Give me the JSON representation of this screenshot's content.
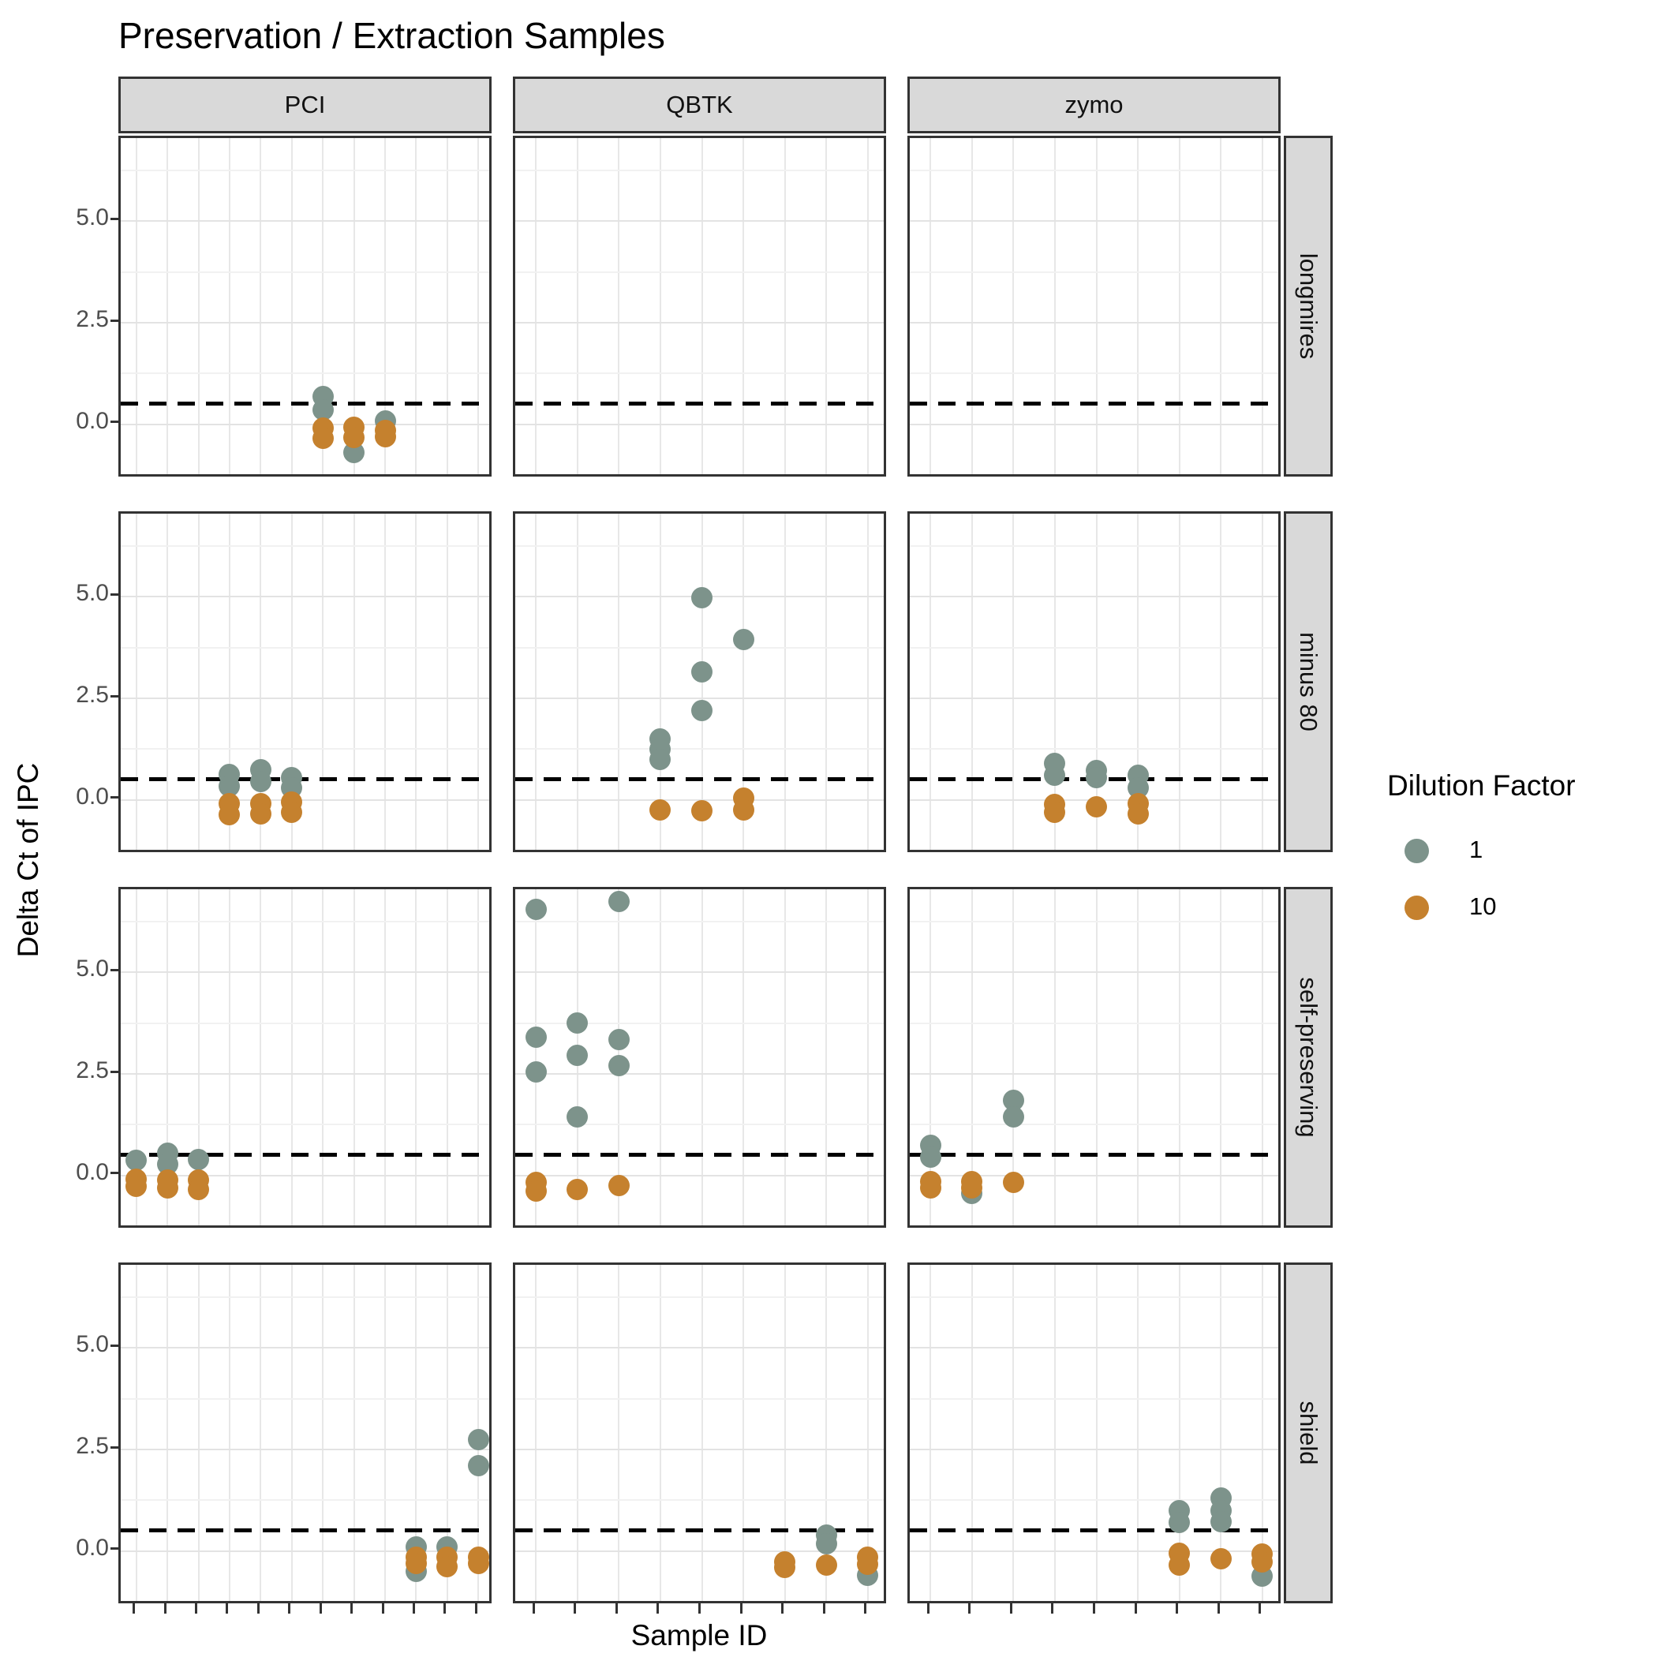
{
  "chart_data": {
    "type": "scatter",
    "title": "Preservation / Extraction Samples",
    "xlabel": "Sample ID",
    "ylabel": "Delta Ct of IPC",
    "facet_columns": [
      "PCI",
      "QBTK",
      "zymo"
    ],
    "facet_rows": [
      "longmires",
      "minus 80",
      "self-preserving",
      "shield"
    ],
    "samples_per_column": {
      "PCI": 12,
      "QBTK": 9,
      "zymo": 9
    },
    "y_axis": {
      "tick_values": [
        0.0,
        2.5,
        5.0
      ],
      "tick_labels": [
        "0.0",
        "2.5",
        "5.0"
      ],
      "range": [
        -1.35,
        7.05
      ],
      "minor_gridlines": [
        -1.25,
        1.25,
        3.75,
        6.25
      ]
    },
    "grid": true,
    "reference_line": {
      "y": 0.5,
      "style": "dashed",
      "color": "#000000"
    },
    "legend": {
      "title": "Dilution Factor",
      "position": "right",
      "entries": [
        {
          "label": "1",
          "color": "#7d938b"
        },
        {
          "label": "10",
          "color": "#c5812e"
        }
      ]
    },
    "dilution_colors": {
      "1": "#7d938b",
      "10": "#c5812e"
    },
    "points": [
      {
        "row": "longmires",
        "col": "PCI",
        "sample": 7,
        "dilution": "1",
        "delta_ct": 0.68
      },
      {
        "row": "longmires",
        "col": "PCI",
        "sample": 7,
        "dilution": "1",
        "delta_ct": 0.35
      },
      {
        "row": "longmires",
        "col": "PCI",
        "sample": 7,
        "dilution": "10",
        "delta_ct": -0.1
      },
      {
        "row": "longmires",
        "col": "PCI",
        "sample": 7,
        "dilution": "10",
        "delta_ct": -0.35
      },
      {
        "row": "longmires",
        "col": "PCI",
        "sample": 8,
        "dilution": "1",
        "delta_ct": -0.7
      },
      {
        "row": "longmires",
        "col": "PCI",
        "sample": 8,
        "dilution": "10",
        "delta_ct": -0.08
      },
      {
        "row": "longmires",
        "col": "PCI",
        "sample": 8,
        "dilution": "10",
        "delta_ct": -0.33
      },
      {
        "row": "longmires",
        "col": "PCI",
        "sample": 9,
        "dilution": "1",
        "delta_ct": 0.07
      },
      {
        "row": "longmires",
        "col": "PCI",
        "sample": 9,
        "dilution": "10",
        "delta_ct": -0.15
      },
      {
        "row": "longmires",
        "col": "PCI",
        "sample": 9,
        "dilution": "10",
        "delta_ct": -0.3
      },
      {
        "row": "minus 80",
        "col": "PCI",
        "sample": 4,
        "dilution": "1",
        "delta_ct": 0.62
      },
      {
        "row": "minus 80",
        "col": "PCI",
        "sample": 4,
        "dilution": "1",
        "delta_ct": 0.33
      },
      {
        "row": "minus 80",
        "col": "PCI",
        "sample": 4,
        "dilution": "10",
        "delta_ct": -0.1
      },
      {
        "row": "minus 80",
        "col": "PCI",
        "sample": 4,
        "dilution": "10",
        "delta_ct": -0.36
      },
      {
        "row": "minus 80",
        "col": "PCI",
        "sample": 5,
        "dilution": "1",
        "delta_ct": 0.75
      },
      {
        "row": "minus 80",
        "col": "PCI",
        "sample": 5,
        "dilution": "1",
        "delta_ct": 0.45
      },
      {
        "row": "minus 80",
        "col": "PCI",
        "sample": 5,
        "dilution": "10",
        "delta_ct": -0.1
      },
      {
        "row": "minus 80",
        "col": "PCI",
        "sample": 5,
        "dilution": "10",
        "delta_ct": -0.35
      },
      {
        "row": "minus 80",
        "col": "PCI",
        "sample": 6,
        "dilution": "1",
        "delta_ct": 0.55
      },
      {
        "row": "minus 80",
        "col": "PCI",
        "sample": 6,
        "dilution": "1",
        "delta_ct": 0.3
      },
      {
        "row": "minus 80",
        "col": "PCI",
        "sample": 6,
        "dilution": "10",
        "delta_ct": -0.05
      },
      {
        "row": "minus 80",
        "col": "PCI",
        "sample": 6,
        "dilution": "10",
        "delta_ct": -0.3
      },
      {
        "row": "minus 80",
        "col": "QBTK",
        "sample": 4,
        "dilution": "1",
        "delta_ct": 1.5
      },
      {
        "row": "minus 80",
        "col": "QBTK",
        "sample": 4,
        "dilution": "1",
        "delta_ct": 1.25
      },
      {
        "row": "minus 80",
        "col": "QBTK",
        "sample": 4,
        "dilution": "1",
        "delta_ct": 1.0
      },
      {
        "row": "minus 80",
        "col": "QBTK",
        "sample": 4,
        "dilution": "10",
        "delta_ct": -0.25
      },
      {
        "row": "minus 80",
        "col": "QBTK",
        "sample": 5,
        "dilution": "1",
        "delta_ct": 4.97
      },
      {
        "row": "minus 80",
        "col": "QBTK",
        "sample": 5,
        "dilution": "1",
        "delta_ct": 3.15
      },
      {
        "row": "minus 80",
        "col": "QBTK",
        "sample": 5,
        "dilution": "1",
        "delta_ct": 2.2
      },
      {
        "row": "minus 80",
        "col": "QBTK",
        "sample": 5,
        "dilution": "10",
        "delta_ct": -0.28
      },
      {
        "row": "minus 80",
        "col": "QBTK",
        "sample": 6,
        "dilution": "1",
        "delta_ct": 3.95
      },
      {
        "row": "minus 80",
        "col": "QBTK",
        "sample": 6,
        "dilution": "10",
        "delta_ct": 0.05
      },
      {
        "row": "minus 80",
        "col": "QBTK",
        "sample": 6,
        "dilution": "10",
        "delta_ct": -0.25
      },
      {
        "row": "minus 80",
        "col": "zymo",
        "sample": 4,
        "dilution": "1",
        "delta_ct": 0.9
      },
      {
        "row": "minus 80",
        "col": "zymo",
        "sample": 4,
        "dilution": "1",
        "delta_ct": 0.6
      },
      {
        "row": "minus 80",
        "col": "zymo",
        "sample": 4,
        "dilution": "10",
        "delta_ct": -0.12
      },
      {
        "row": "minus 80",
        "col": "zymo",
        "sample": 4,
        "dilution": "10",
        "delta_ct": -0.3
      },
      {
        "row": "minus 80",
        "col": "zymo",
        "sample": 5,
        "dilution": "1",
        "delta_ct": 0.72
      },
      {
        "row": "minus 80",
        "col": "zymo",
        "sample": 5,
        "dilution": "1",
        "delta_ct": 0.55
      },
      {
        "row": "minus 80",
        "col": "zymo",
        "sample": 5,
        "dilution": "10",
        "delta_ct": -0.18
      },
      {
        "row": "minus 80",
        "col": "zymo",
        "sample": 6,
        "dilution": "1",
        "delta_ct": 0.6
      },
      {
        "row": "minus 80",
        "col": "zymo",
        "sample": 6,
        "dilution": "1",
        "delta_ct": 0.3
      },
      {
        "row": "minus 80",
        "col": "zymo",
        "sample": 6,
        "dilution": "10",
        "delta_ct": -0.1
      },
      {
        "row": "minus 80",
        "col": "zymo",
        "sample": 6,
        "dilution": "10",
        "delta_ct": -0.35
      },
      {
        "row": "self-preserving",
        "col": "PCI",
        "sample": 1,
        "dilution": "1",
        "delta_ct": 0.38
      },
      {
        "row": "self-preserving",
        "col": "PCI",
        "sample": 1,
        "dilution": "10",
        "delta_ct": -0.1
      },
      {
        "row": "self-preserving",
        "col": "PCI",
        "sample": 1,
        "dilution": "10",
        "delta_ct": -0.28
      },
      {
        "row": "self-preserving",
        "col": "PCI",
        "sample": 2,
        "dilution": "1",
        "delta_ct": 0.55
      },
      {
        "row": "self-preserving",
        "col": "PCI",
        "sample": 2,
        "dilution": "1",
        "delta_ct": 0.28
      },
      {
        "row": "self-preserving",
        "col": "PCI",
        "sample": 2,
        "dilution": "10",
        "delta_ct": -0.12
      },
      {
        "row": "self-preserving",
        "col": "PCI",
        "sample": 2,
        "dilution": "10",
        "delta_ct": -0.3
      },
      {
        "row": "self-preserving",
        "col": "PCI",
        "sample": 3,
        "dilution": "1",
        "delta_ct": 0.4
      },
      {
        "row": "self-preserving",
        "col": "PCI",
        "sample": 3,
        "dilution": "10",
        "delta_ct": -0.12
      },
      {
        "row": "self-preserving",
        "col": "PCI",
        "sample": 3,
        "dilution": "10",
        "delta_ct": -0.35
      },
      {
        "row": "self-preserving",
        "col": "QBTK",
        "sample": 1,
        "dilution": "1",
        "delta_ct": 6.55
      },
      {
        "row": "self-preserving",
        "col": "QBTK",
        "sample": 1,
        "dilution": "1",
        "delta_ct": 3.4
      },
      {
        "row": "self-preserving",
        "col": "QBTK",
        "sample": 1,
        "dilution": "1",
        "delta_ct": 2.55
      },
      {
        "row": "self-preserving",
        "col": "QBTK",
        "sample": 1,
        "dilution": "10",
        "delta_ct": -0.18
      },
      {
        "row": "self-preserving",
        "col": "QBTK",
        "sample": 1,
        "dilution": "10",
        "delta_ct": -0.38
      },
      {
        "row": "self-preserving",
        "col": "QBTK",
        "sample": 2,
        "dilution": "1",
        "delta_ct": 3.75
      },
      {
        "row": "self-preserving",
        "col": "QBTK",
        "sample": 2,
        "dilution": "1",
        "delta_ct": 2.95
      },
      {
        "row": "self-preserving",
        "col": "QBTK",
        "sample": 2,
        "dilution": "1",
        "delta_ct": 1.45
      },
      {
        "row": "self-preserving",
        "col": "QBTK",
        "sample": 2,
        "dilution": "10",
        "delta_ct": -0.35
      },
      {
        "row": "self-preserving",
        "col": "QBTK",
        "sample": 3,
        "dilution": "1",
        "delta_ct": 6.75
      },
      {
        "row": "self-preserving",
        "col": "QBTK",
        "sample": 3,
        "dilution": "1",
        "delta_ct": 3.35
      },
      {
        "row": "self-preserving",
        "col": "QBTK",
        "sample": 3,
        "dilution": "1",
        "delta_ct": 2.7
      },
      {
        "row": "self-preserving",
        "col": "QBTK",
        "sample": 3,
        "dilution": "10",
        "delta_ct": -0.25
      },
      {
        "row": "self-preserving",
        "col": "zymo",
        "sample": 1,
        "dilution": "1",
        "delta_ct": 0.75
      },
      {
        "row": "self-preserving",
        "col": "zymo",
        "sample": 1,
        "dilution": "1",
        "delta_ct": 0.45
      },
      {
        "row": "self-preserving",
        "col": "zymo",
        "sample": 1,
        "dilution": "10",
        "delta_ct": -0.15
      },
      {
        "row": "self-preserving",
        "col": "zymo",
        "sample": 1,
        "dilution": "10",
        "delta_ct": -0.3
      },
      {
        "row": "self-preserving",
        "col": "zymo",
        "sample": 2,
        "dilution": "1",
        "delta_ct": -0.45
      },
      {
        "row": "self-preserving",
        "col": "zymo",
        "sample": 2,
        "dilution": "10",
        "delta_ct": -0.15
      },
      {
        "row": "self-preserving",
        "col": "zymo",
        "sample": 2,
        "dilution": "10",
        "delta_ct": -0.3
      },
      {
        "row": "self-preserving",
        "col": "zymo",
        "sample": 3,
        "dilution": "1",
        "delta_ct": 1.85
      },
      {
        "row": "self-preserving",
        "col": "zymo",
        "sample": 3,
        "dilution": "1",
        "delta_ct": 1.45
      },
      {
        "row": "self-preserving",
        "col": "zymo",
        "sample": 3,
        "dilution": "10",
        "delta_ct": -0.18
      },
      {
        "row": "shield",
        "col": "PCI",
        "sample": 10,
        "dilution": "1",
        "delta_ct": 0.1
      },
      {
        "row": "shield",
        "col": "PCI",
        "sample": 10,
        "dilution": "1",
        "delta_ct": -0.5
      },
      {
        "row": "shield",
        "col": "PCI",
        "sample": 10,
        "dilution": "10",
        "delta_ct": -0.15
      },
      {
        "row": "shield",
        "col": "PCI",
        "sample": 10,
        "dilution": "10",
        "delta_ct": -0.3
      },
      {
        "row": "shield",
        "col": "PCI",
        "sample": 11,
        "dilution": "1",
        "delta_ct": 0.1
      },
      {
        "row": "shield",
        "col": "PCI",
        "sample": 11,
        "dilution": "10",
        "delta_ct": -0.15
      },
      {
        "row": "shield",
        "col": "PCI",
        "sample": 11,
        "dilution": "10",
        "delta_ct": -0.38
      },
      {
        "row": "shield",
        "col": "PCI",
        "sample": 12,
        "dilution": "1",
        "delta_ct": 2.75
      },
      {
        "row": "shield",
        "col": "PCI",
        "sample": 12,
        "dilution": "1",
        "delta_ct": 2.1
      },
      {
        "row": "shield",
        "col": "PCI",
        "sample": 12,
        "dilution": "10",
        "delta_ct": -0.15
      },
      {
        "row": "shield",
        "col": "PCI",
        "sample": 12,
        "dilution": "10",
        "delta_ct": -0.3
      },
      {
        "row": "shield",
        "col": "QBTK",
        "sample": 7,
        "dilution": "10",
        "delta_ct": -0.28
      },
      {
        "row": "shield",
        "col": "QBTK",
        "sample": 7,
        "dilution": "10",
        "delta_ct": -0.4
      },
      {
        "row": "shield",
        "col": "QBTK",
        "sample": 8,
        "dilution": "1",
        "delta_ct": 0.4
      },
      {
        "row": "shield",
        "col": "QBTK",
        "sample": 8,
        "dilution": "1",
        "delta_ct": 0.18
      },
      {
        "row": "shield",
        "col": "QBTK",
        "sample": 8,
        "dilution": "10",
        "delta_ct": -0.35
      },
      {
        "row": "shield",
        "col": "QBTK",
        "sample": 9,
        "dilution": "1",
        "delta_ct": -0.6
      },
      {
        "row": "shield",
        "col": "QBTK",
        "sample": 9,
        "dilution": "10",
        "delta_ct": -0.15
      },
      {
        "row": "shield",
        "col": "QBTK",
        "sample": 9,
        "dilution": "10",
        "delta_ct": -0.32
      },
      {
        "row": "shield",
        "col": "zymo",
        "sample": 7,
        "dilution": "1",
        "delta_ct": 1.0
      },
      {
        "row": "shield",
        "col": "zymo",
        "sample": 7,
        "dilution": "1",
        "delta_ct": 0.7
      },
      {
        "row": "shield",
        "col": "zymo",
        "sample": 7,
        "dilution": "10",
        "delta_ct": -0.05
      },
      {
        "row": "shield",
        "col": "zymo",
        "sample": 7,
        "dilution": "10",
        "delta_ct": -0.35
      },
      {
        "row": "shield",
        "col": "zymo",
        "sample": 8,
        "dilution": "1",
        "delta_ct": 1.3
      },
      {
        "row": "shield",
        "col": "zymo",
        "sample": 8,
        "dilution": "1",
        "delta_ct": 1.0
      },
      {
        "row": "shield",
        "col": "zymo",
        "sample": 8,
        "dilution": "1",
        "delta_ct": 0.72
      },
      {
        "row": "shield",
        "col": "zymo",
        "sample": 8,
        "dilution": "10",
        "delta_ct": -0.2
      },
      {
        "row": "shield",
        "col": "zymo",
        "sample": 9,
        "dilution": "1",
        "delta_ct": -0.62
      },
      {
        "row": "shield",
        "col": "zymo",
        "sample": 9,
        "dilution": "10",
        "delta_ct": -0.08
      },
      {
        "row": "shield",
        "col": "zymo",
        "sample": 9,
        "dilution": "10",
        "delta_ct": -0.28
      }
    ]
  }
}
